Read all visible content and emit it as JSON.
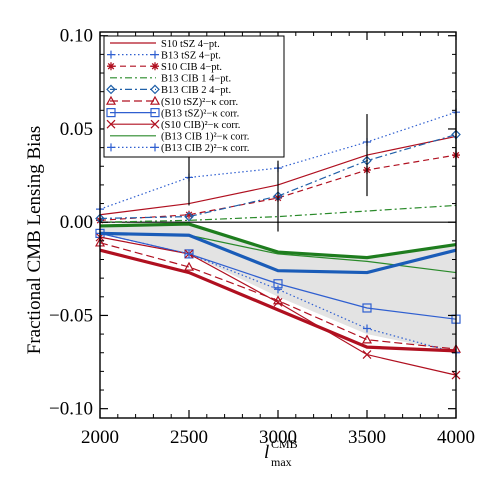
{
  "chart_data": {
    "type": "line",
    "title": "",
    "xlabel_main": "l",
    "xlabel_sup": "CMB",
    "xlabel_sub": "max",
    "ylabel": "Fractional CMB Lensing Bias",
    "xlim": [
      2000,
      4000
    ],
    "ylim": [
      -0.105,
      0.102
    ],
    "x_ticks": [
      2000,
      2500,
      3000,
      3500,
      4000
    ],
    "y_ticks": [
      -0.1,
      -0.05,
      0.0,
      0.05,
      0.1
    ],
    "x_tick_labels": [
      "2000",
      "2500",
      "3000",
      "3500",
      "4000"
    ],
    "y_tick_labels": [
      "−0.10",
      "−0.05",
      "0.00",
      "0.05",
      "0.10"
    ],
    "legend_position": "top-left",
    "shaded_band": {
      "x": [
        2000,
        2500,
        3000,
        3500,
        4000
      ],
      "lower": [
        -0.006,
        -0.017,
        -0.04,
        -0.06,
        -0.07
      ],
      "upper": [
        -0.002,
        0.0,
        -0.016,
        -0.019,
        -0.012
      ],
      "color": "#e3e3e3"
    },
    "series": [
      {
        "name": "S10 tSZ 4−pt.",
        "color": "#b01020",
        "dash": "",
        "marker": "none",
        "width": 1.2,
        "x": [
          2000,
          2500,
          3000,
          3500,
          4000
        ],
        "y": [
          0.004,
          0.01,
          0.02,
          0.036,
          0.046
        ]
      },
      {
        "name": "B13 tSZ 4−pt.",
        "color": "#2f5fd0",
        "dash": "1.5,2.5",
        "marker": "plus",
        "width": 1.2,
        "x": [
          2000,
          2500,
          3000,
          3500,
          4000
        ],
        "y": [
          0.007,
          0.024,
          0.029,
          0.043,
          0.059
        ]
      },
      {
        "name": "S10 CIB 4−pt.",
        "color": "#b01020",
        "dash": "6,4",
        "marker": "asterisk",
        "width": 1.2,
        "x": [
          2000,
          2500,
          3000,
          3500,
          4000
        ],
        "y": [
          0.001,
          0.004,
          0.013,
          0.028,
          0.036
        ]
      },
      {
        "name": "B13 CIB 1 4−pt.",
        "color": "#2a8a2a",
        "dash": "7,3,2,3",
        "marker": "none",
        "width": 1.2,
        "x": [
          2000,
          2500,
          3000,
          3500,
          4000
        ],
        "y": [
          0.0,
          0.001,
          0.003,
          0.006,
          0.009
        ]
      },
      {
        "name": "B13 CIB 2 4−pt.",
        "color": "#2060a8",
        "dash": "7,3,2,3",
        "marker": "diamond",
        "width": 1.2,
        "x": [
          2000,
          2500,
          3000,
          3500,
          4000
        ],
        "y": [
          0.002,
          0.003,
          0.014,
          0.033,
          0.047
        ]
      },
      {
        "name": "(S10 tSZ)²−κ corr.",
        "color": "#b01020",
        "dash": "8,4",
        "marker": "triangle",
        "width": 1.2,
        "x": [
          2000,
          2500,
          3000,
          3500,
          4000
        ],
        "y": [
          -0.011,
          -0.024,
          -0.042,
          -0.063,
          -0.068
        ]
      },
      {
        "name": "(B13 tSZ)²−κ corr.",
        "color": "#2f5fd0",
        "dash": "",
        "marker": "square",
        "width": 1.2,
        "x": [
          2000,
          2500,
          3000,
          3500,
          4000
        ],
        "y": [
          -0.006,
          -0.017,
          -0.033,
          -0.046,
          -0.052
        ]
      },
      {
        "name": "(S10 CIB)²−κ corr.",
        "color": "#b01020",
        "dash": "",
        "marker": "x",
        "width": 1.2,
        "x": [
          2000,
          2500,
          3000,
          3500,
          4000
        ],
        "y": [
          -0.008,
          -0.017,
          -0.043,
          -0.071,
          -0.082
        ]
      },
      {
        "name": "(B13 CIB 1)²−κ corr.",
        "color": "#2a8a2a",
        "dash": "",
        "marker": "none",
        "width": 1.2,
        "x": [
          2000,
          2500,
          3000,
          3500,
          4000
        ],
        "y": [
          -0.006,
          -0.007,
          -0.017,
          -0.021,
          -0.027
        ]
      },
      {
        "name": "(B13 CIB 2)²−κ corr.",
        "color": "#2f5fd0",
        "dash": "1.5,2.5",
        "marker": "plus",
        "width": 1.2,
        "x": [
          2000,
          2500,
          3000,
          3500,
          4000
        ],
        "y": [
          -0.006,
          -0.017,
          -0.036,
          -0.057,
          -0.07
        ]
      }
    ],
    "unlabeled_lines": [
      {
        "color": "#1a5cb8",
        "width": 3.2,
        "x": [
          2000,
          2500,
          3000,
          3500,
          4000
        ],
        "y": [
          -0.006,
          -0.007,
          -0.026,
          -0.027,
          -0.015
        ]
      },
      {
        "color": "#1e7d1e",
        "width": 3.2,
        "x": [
          2000,
          2500,
          3000,
          3500,
          4000
        ],
        "y": [
          -0.002,
          -0.001,
          -0.016,
          -0.019,
          -0.012
        ]
      },
      {
        "color": "#b01020",
        "width": 3.2,
        "x": [
          2000,
          2500,
          3000,
          3500,
          4000
        ],
        "y": [
          -0.015,
          -0.027,
          -0.047,
          -0.067,
          -0.069
        ]
      }
    ],
    "error_bars": {
      "color": "#000000",
      "x": [
        2500,
        3000,
        3500,
        4000
      ],
      "center": [
        0.024,
        0.014,
        0.036,
        0.047
      ],
      "half": [
        0.015,
        0.019,
        0.022,
        0.019
      ]
    }
  }
}
